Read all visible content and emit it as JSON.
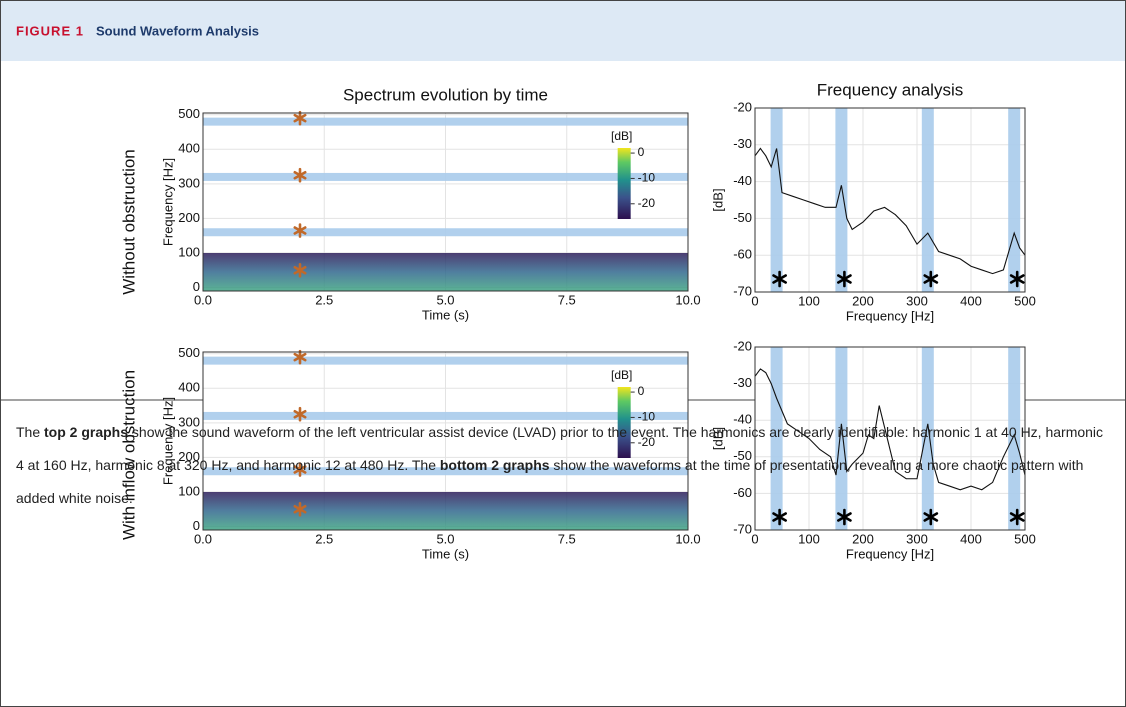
{
  "header": {
    "label": "FIGURE 1",
    "title": "Sound Waveform Analysis"
  },
  "row_labels": [
    "Without obstruction",
    "With inflow obstruction"
  ],
  "chart_data": [
    {
      "type": "spectrogram",
      "title": "Spectrum evolution by time",
      "xlabel": "Time (s)",
      "ylabel": "Frequency [Hz]",
      "xlim": [
        0,
        10
      ],
      "ylim": [
        -10,
        505
      ],
      "xticks": [
        {
          "value": 0,
          "label": "0.0"
        },
        {
          "value": 2.5,
          "label": "2.5"
        },
        {
          "value": 5,
          "label": "5.0"
        },
        {
          "value": 7.5,
          "label": "7.5"
        },
        {
          "value": 10,
          "label": "10.0"
        }
      ],
      "yticks": [
        0,
        100,
        200,
        300,
        400,
        500
      ],
      "band_freqs": [
        160,
        320,
        480
      ],
      "marker_time": 2,
      "marker_freqs": [
        50,
        165,
        325,
        490
      ],
      "colorbar": {
        "label": "[dB]",
        "clim": [
          -26,
          2
        ],
        "ticks": [
          0,
          -10,
          -20
        ]
      },
      "grid": true
    },
    {
      "type": "line",
      "title": "Frequency analysis",
      "xlabel": "Frequency [Hz]",
      "ylabel": "[dB]",
      "xlim": [
        0,
        500
      ],
      "ylim": [
        -70,
        -20
      ],
      "xticks": [
        0,
        100,
        200,
        300,
        400,
        500
      ],
      "yticks": [
        -70,
        -60,
        -50,
        -40,
        -30,
        -20
      ],
      "harmonics": [
        40,
        160,
        320,
        480
      ],
      "color": "#111111",
      "grid": true,
      "x": [
        0,
        10,
        20,
        30,
        40,
        50,
        70,
        90,
        110,
        130,
        150,
        160,
        170,
        180,
        200,
        220,
        240,
        260,
        280,
        300,
        320,
        340,
        360,
        380,
        400,
        420,
        440,
        460,
        480,
        490,
        500
      ],
      "values": [
        -33,
        -31,
        -33,
        -36,
        -31,
        -43,
        -44,
        -45,
        -46,
        -47,
        -47,
        -41,
        -50,
        -53,
        -51,
        -48,
        -47,
        -49,
        -52,
        -57,
        -54,
        -59,
        -60,
        -61,
        -63,
        -64,
        -65,
        -64,
        -54,
        -58,
        -60
      ]
    },
    {
      "type": "spectrogram",
      "xlabel": "Time (s)",
      "ylabel": "Frequency [Hz]",
      "xlim": [
        0,
        10
      ],
      "ylim": [
        -10,
        505
      ],
      "xticks": [
        {
          "value": 0,
          "label": "0.0"
        },
        {
          "value": 2.5,
          "label": "2.5"
        },
        {
          "value": 5,
          "label": "5.0"
        },
        {
          "value": 7.5,
          "label": "7.5"
        },
        {
          "value": 10,
          "label": "10.0"
        }
      ],
      "yticks": [
        0,
        100,
        200,
        300,
        400,
        500
      ],
      "band_freqs": [
        160,
        320,
        480
      ],
      "marker_time": 2,
      "marker_freqs": [
        50,
        165,
        325,
        490
      ],
      "colorbar": {
        "label": "[dB]",
        "clim": [
          -26,
          2
        ],
        "ticks": [
          0,
          -10,
          -20
        ]
      },
      "grid": true
    },
    {
      "type": "line",
      "xlabel": "Frequency [Hz]",
      "ylabel": "[dB]",
      "xlim": [
        0,
        500
      ],
      "ylim": [
        -70,
        -20
      ],
      "xticks": [
        0,
        100,
        200,
        300,
        400,
        500
      ],
      "yticks": [
        -70,
        -60,
        -50,
        -40,
        -30,
        -20
      ],
      "harmonics": [
        40,
        160,
        320,
        480
      ],
      "color": "#111111",
      "grid": true,
      "x": [
        0,
        10,
        20,
        30,
        40,
        60,
        80,
        100,
        120,
        140,
        150,
        160,
        170,
        180,
        200,
        210,
        220,
        230,
        240,
        260,
        280,
        300,
        320,
        330,
        340,
        360,
        380,
        400,
        420,
        440,
        460,
        480,
        490,
        500
      ],
      "values": [
        -28,
        -26,
        -27,
        -30,
        -34,
        -41,
        -43,
        -45,
        -48,
        -50,
        -55,
        -41,
        -54,
        -52,
        -49,
        -44,
        -45,
        -36,
        -42,
        -54,
        -56,
        -56,
        -41,
        -52,
        -57,
        -58,
        -59,
        -58,
        -59,
        -57,
        -50,
        -44,
        -49,
        -55
      ]
    }
  ],
  "caption": [
    {
      "text": "The ",
      "bold": false
    },
    {
      "text": "top 2 graphs",
      "bold": true
    },
    {
      "text": " show the sound waveform of the left ventricular assist device (LVAD) prior to the event. The harmonics are clearly identifiable: harmonic 1 at 40 Hz, harmonic 4 at 160 Hz, harmonic 8 at 320 Hz, and harmonic 12 at 480 Hz. The ",
      "bold": false
    },
    {
      "text": "bottom 2 graphs",
      "bold": true
    },
    {
      "text": " show the waveforms at the time of presentation, revealing a more chaotic pattern with added white noise.",
      "bold": false
    }
  ]
}
